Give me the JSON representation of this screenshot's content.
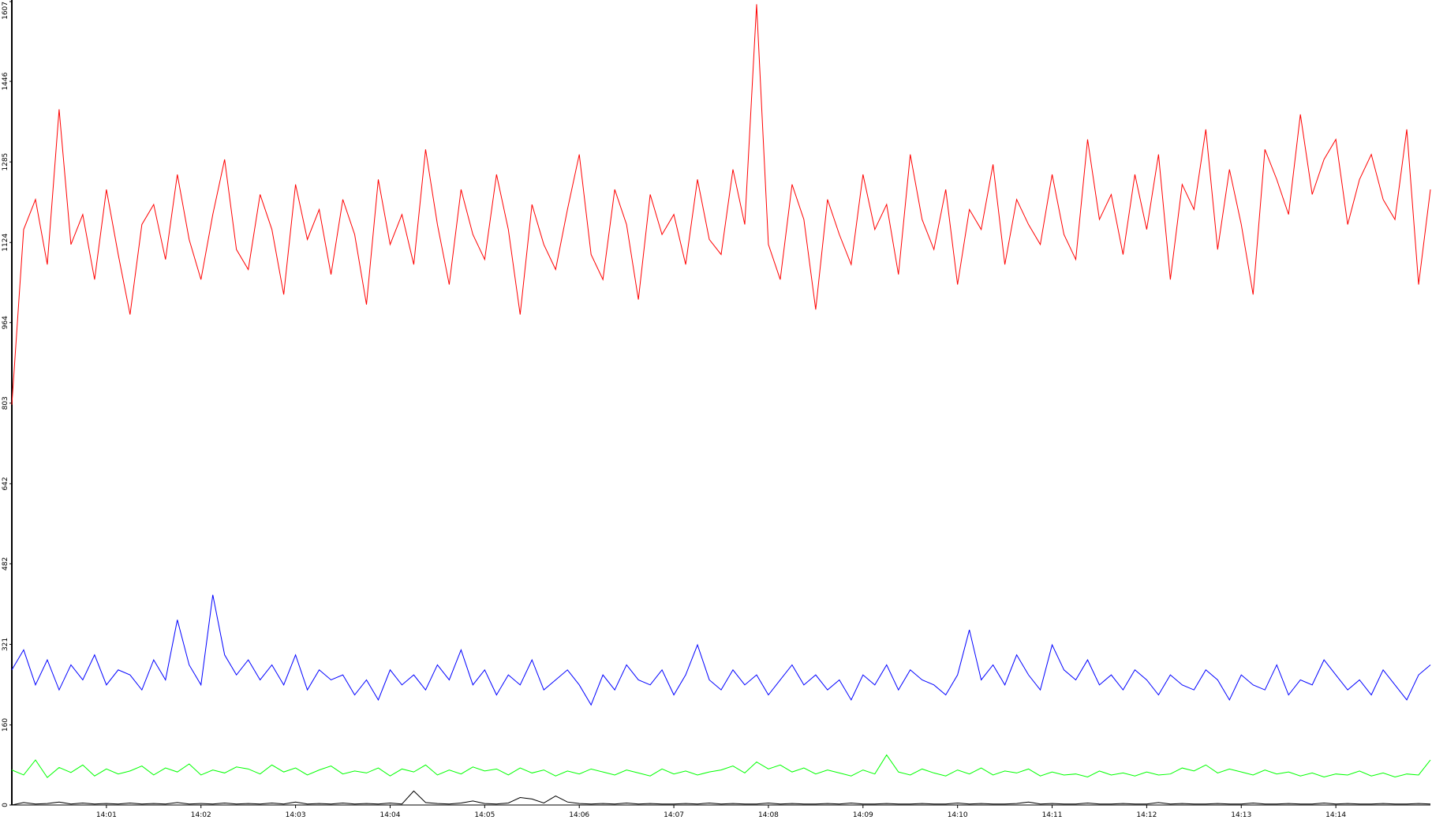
{
  "chart_data": {
    "type": "line",
    "x": [
      0,
      0.125,
      0.25,
      0.375,
      0.5,
      0.625,
      0.75,
      0.875,
      1,
      1.125,
      1.25,
      1.375,
      1.5,
      1.625,
      1.75,
      1.875,
      2,
      2.125,
      2.25,
      2.375,
      2.5,
      2.625,
      2.75,
      2.875,
      3,
      3.125,
      3.25,
      3.375,
      3.5,
      3.625,
      3.75,
      3.875,
      4,
      4.125,
      4.25,
      4.375,
      4.5,
      4.625,
      4.75,
      4.875,
      5,
      5.125,
      5.25,
      5.375,
      5.5,
      5.625,
      5.75,
      5.875,
      6,
      6.125,
      6.25,
      6.375,
      6.5,
      6.625,
      6.75,
      6.875,
      7,
      7.125,
      7.25,
      7.375,
      7.5,
      7.625,
      7.75,
      7.875,
      8,
      8.125,
      8.25,
      8.375,
      8.5,
      8.625,
      8.75,
      8.875,
      9,
      9.125,
      9.25,
      9.375,
      9.5,
      9.625,
      9.75,
      9.875,
      10,
      10.125,
      10.25,
      10.375,
      10.5,
      10.625,
      10.75,
      10.875,
      11,
      11.125,
      11.25,
      11.375,
      11.5,
      11.625,
      11.75,
      11.875,
      12,
      12.125,
      12.25,
      12.375,
      12.5,
      12.625,
      12.75,
      12.875,
      13,
      13.125,
      13.25,
      13.375,
      13.5,
      13.625,
      13.75,
      13.875,
      14,
      14.125,
      14.25,
      14.375,
      14.5,
      14.625,
      14.75,
      14.875,
      15
    ],
    "series": [
      {
        "color": "#ff0000",
        "values": [
          800,
          1150,
          1210,
          1080,
          1390,
          1120,
          1180,
          1050,
          1230,
          1100,
          980,
          1160,
          1200,
          1090,
          1260,
          1130,
          1050,
          1180,
          1290,
          1110,
          1070,
          1220,
          1150,
          1020,
          1240,
          1130,
          1190,
          1060,
          1210,
          1140,
          1000,
          1250,
          1120,
          1180,
          1080,
          1310,
          1160,
          1040,
          1230,
          1140,
          1090,
          1260,
          1150,
          980,
          1200,
          1120,
          1070,
          1190,
          1300,
          1100,
          1050,
          1230,
          1160,
          1010,
          1220,
          1140,
          1180,
          1080,
          1250,
          1130,
          1100,
          1270,
          1160,
          1600,
          1120,
          1050,
          1240,
          1170,
          990,
          1210,
          1140,
          1080,
          1260,
          1150,
          1200,
          1060,
          1300,
          1170,
          1110,
          1230,
          1040,
          1190,
          1150,
          1280,
          1080,
          1210,
          1160,
          1120,
          1260,
          1140,
          1090,
          1330,
          1170,
          1220,
          1100,
          1260,
          1150,
          1300,
          1050,
          1240,
          1190,
          1350,
          1110,
          1270,
          1160,
          1020,
          1310,
          1250,
          1180,
          1380,
          1220,
          1290,
          1330,
          1160,
          1250,
          1300,
          1210,
          1170,
          1350,
          1040,
          1230
        ]
      },
      {
        "color": "#0000ff",
        "values": [
          270,
          310,
          240,
          290,
          230,
          280,
          250,
          300,
          240,
          270,
          260,
          230,
          290,
          250,
          370,
          280,
          240,
          420,
          300,
          260,
          290,
          250,
          280,
          240,
          300,
          230,
          270,
          250,
          260,
          220,
          250,
          210,
          270,
          240,
          260,
          230,
          280,
          250,
          310,
          240,
          270,
          220,
          260,
          240,
          290,
          230,
          250,
          270,
          240,
          200,
          260,
          230,
          280,
          250,
          240,
          270,
          220,
          260,
          320,
          250,
          230,
          270,
          240,
          260,
          220,
          250,
          280,
          240,
          260,
          230,
          250,
          210,
          260,
          240,
          280,
          230,
          270,
          250,
          240,
          220,
          260,
          350,
          250,
          280,
          240,
          300,
          260,
          230,
          320,
          270,
          250,
          290,
          240,
          260,
          230,
          270,
          250,
          220,
          260,
          240,
          230,
          270,
          250,
          210,
          260,
          240,
          230,
          280,
          220,
          250,
          240,
          290,
          260,
          230,
          250,
          220,
          270,
          240,
          210,
          260,
          280
        ]
      },
      {
        "color": "#00ff00",
        "values": [
          70,
          60,
          90,
          55,
          75,
          65,
          80,
          58,
          72,
          62,
          68,
          78,
          60,
          74,
          66,
          82,
          60,
          70,
          64,
          76,
          72,
          62,
          80,
          66,
          74,
          60,
          70,
          78,
          62,
          68,
          64,
          74,
          58,
          72,
          66,
          80,
          60,
          70,
          62,
          76,
          68,
          72,
          60,
          74,
          64,
          70,
          58,
          68,
          62,
          72,
          66,
          60,
          70,
          64,
          58,
          72,
          62,
          68,
          60,
          66,
          70,
          78,
          64,
          86,
          72,
          80,
          66,
          74,
          62,
          70,
          64,
          58,
          70,
          62,
          100,
          66,
          60,
          72,
          64,
          58,
          70,
          62,
          74,
          60,
          68,
          64,
          72,
          58,
          66,
          60,
          62,
          56,
          68,
          60,
          64,
          58,
          66,
          60,
          62,
          74,
          68,
          80,
          64,
          72,
          66,
          60,
          70,
          62,
          66,
          58,
          64,
          56,
          62,
          60,
          68,
          58,
          64,
          56,
          62,
          60,
          90
        ]
      },
      {
        "color": "#000000",
        "values": [
          0,
          5,
          2,
          3,
          6,
          2,
          4,
          2,
          3,
          2,
          4,
          2,
          3,
          2,
          5,
          2,
          3,
          2,
          4,
          2,
          3,
          2,
          4,
          2,
          6,
          2,
          3,
          2,
          4,
          2,
          3,
          2,
          4,
          2,
          28,
          5,
          3,
          2,
          4,
          8,
          3,
          2,
          4,
          15,
          12,
          4,
          18,
          6,
          3,
          2,
          3,
          2,
          4,
          2,
          3,
          2,
          2,
          3,
          2,
          4,
          2,
          3,
          2,
          2,
          4,
          2,
          3,
          2,
          2,
          3,
          2,
          4,
          2,
          2,
          3,
          2,
          2,
          3,
          2,
          2,
          4,
          2,
          3,
          2,
          2,
          3,
          6,
          2,
          3,
          2,
          2,
          4,
          2,
          2,
          3,
          2,
          2,
          5,
          2,
          3,
          2,
          2,
          3,
          2,
          2,
          4,
          2,
          2,
          3,
          2,
          2,
          4,
          2,
          3,
          2,
          2,
          3,
          2,
          2,
          3,
          2
        ]
      }
    ],
    "xlim": [
      0,
      15
    ],
    "xticks": [
      {
        "value": 1,
        "label": "14:01"
      },
      {
        "value": 2,
        "label": "14:02"
      },
      {
        "value": 3,
        "label": "14:03"
      },
      {
        "value": 4,
        "label": "14:04"
      },
      {
        "value": 5,
        "label": "14:05"
      },
      {
        "value": 6,
        "label": "14:06"
      },
      {
        "value": 7,
        "label": "14:07"
      },
      {
        "value": 8,
        "label": "14:08"
      },
      {
        "value": 9,
        "label": "14:09"
      },
      {
        "value": 10,
        "label": "14:10"
      },
      {
        "value": 11,
        "label": "14:11"
      },
      {
        "value": 12,
        "label": "14:12"
      },
      {
        "value": 13,
        "label": "14:13"
      },
      {
        "value": 14,
        "label": "14:14"
      }
    ],
    "ylim": [
      0,
      1607
    ],
    "yticks": [
      0,
      160,
      321,
      482,
      642,
      803,
      964,
      1124,
      1285,
      1446,
      1607
    ]
  }
}
